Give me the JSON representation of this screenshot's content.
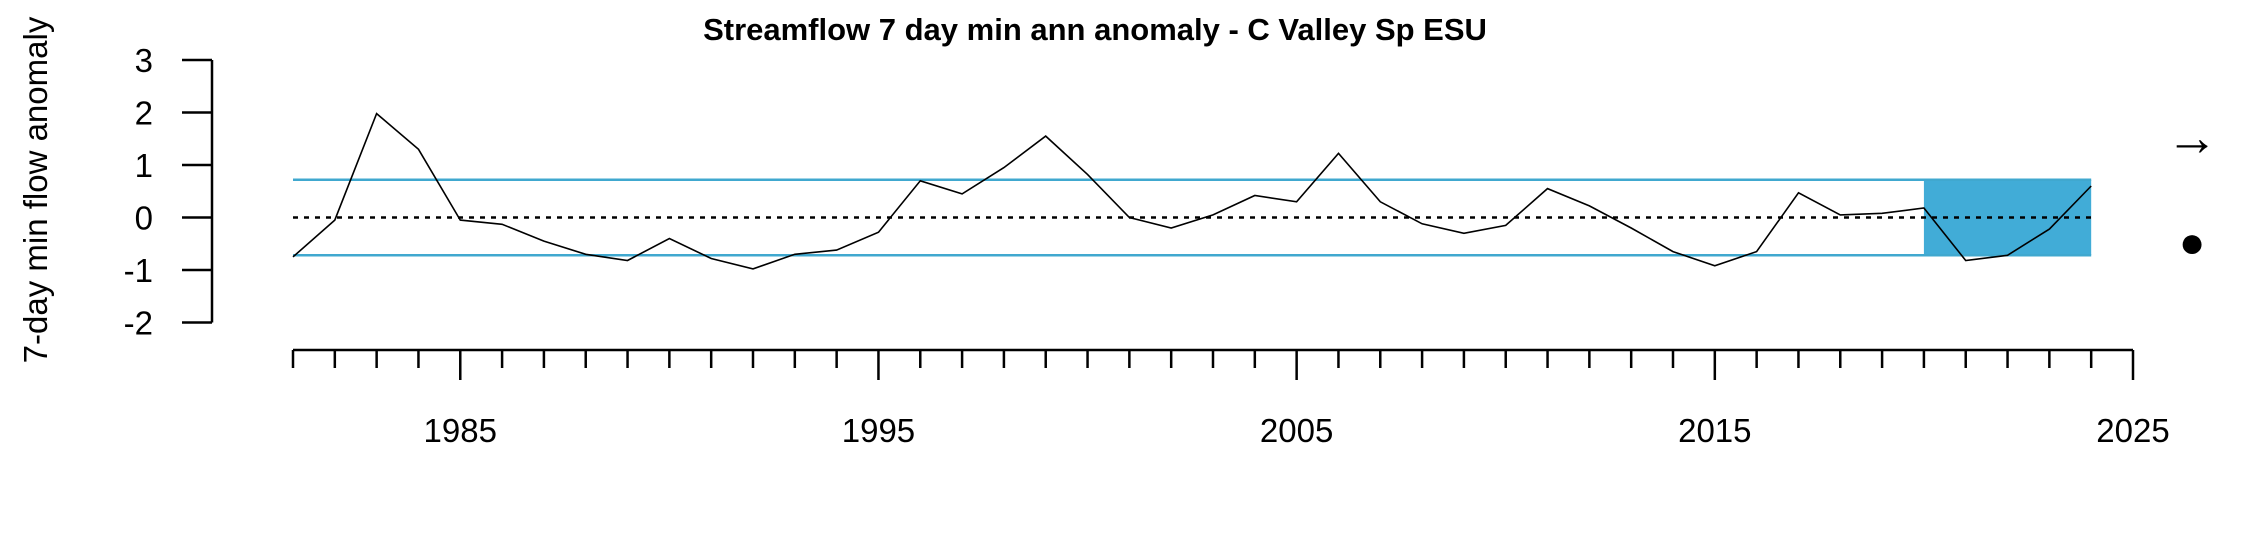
{
  "chart_data": {
    "type": "line",
    "title": "Streamflow 7 day min ann anomaly - C Valley Sp ESU",
    "xlabel": "",
    "ylabel": "7-day min flow anomaly",
    "xlim": [
      1981,
      2025
    ],
    "ylim": [
      -2,
      3
    ],
    "x_ticks_major": [
      1985,
      1995,
      2005,
      2015,
      2025
    ],
    "y_ticks": [
      3,
      2,
      1,
      0,
      -1,
      -2
    ],
    "x": [
      1981,
      1982,
      1983,
      1984,
      1985,
      1986,
      1987,
      1988,
      1989,
      1990,
      1991,
      1992,
      1993,
      1994,
      1995,
      1996,
      1997,
      1998,
      1999,
      2000,
      2001,
      2002,
      2003,
      2004,
      2005,
      2006,
      2007,
      2008,
      2009,
      2010,
      2011,
      2012,
      2013,
      2014,
      2015,
      2016,
      2017,
      2018,
      2019,
      2020,
      2021,
      2022,
      2023,
      2024
    ],
    "series": [
      {
        "values": [
          -0.75,
          -0.05,
          1.98,
          1.3,
          -0.05,
          -0.13,
          -0.45,
          -0.7,
          -0.82,
          -0.4,
          -0.78,
          -0.98,
          -0.7,
          -0.62,
          -0.28,
          0.7,
          0.45,
          0.95,
          1.55,
          0.82,
          0.0,
          -0.2,
          0.05,
          0.42,
          0.3,
          1.22,
          0.3,
          -0.12,
          -0.3,
          -0.15,
          0.55,
          0.22,
          -0.2,
          -0.65,
          -0.92,
          -0.65,
          0.47,
          0.05,
          0.08,
          0.18,
          -0.82,
          -0.72,
          -0.22,
          0.6
        ],
        "color": "#000000"
      }
    ],
    "reference_lines": {
      "mean": 0,
      "upper_sd": 0.72,
      "lower_sd": -0.72,
      "sd_color": "#40a8cf",
      "mean_style": "dotted"
    },
    "highlight_region": {
      "x_start": 2020,
      "x_end": 2024,
      "y_start": -0.72,
      "y_end": 0.72,
      "color": "#41acd7"
    },
    "trend_symbol": "→",
    "mean_symbol": "●"
  }
}
